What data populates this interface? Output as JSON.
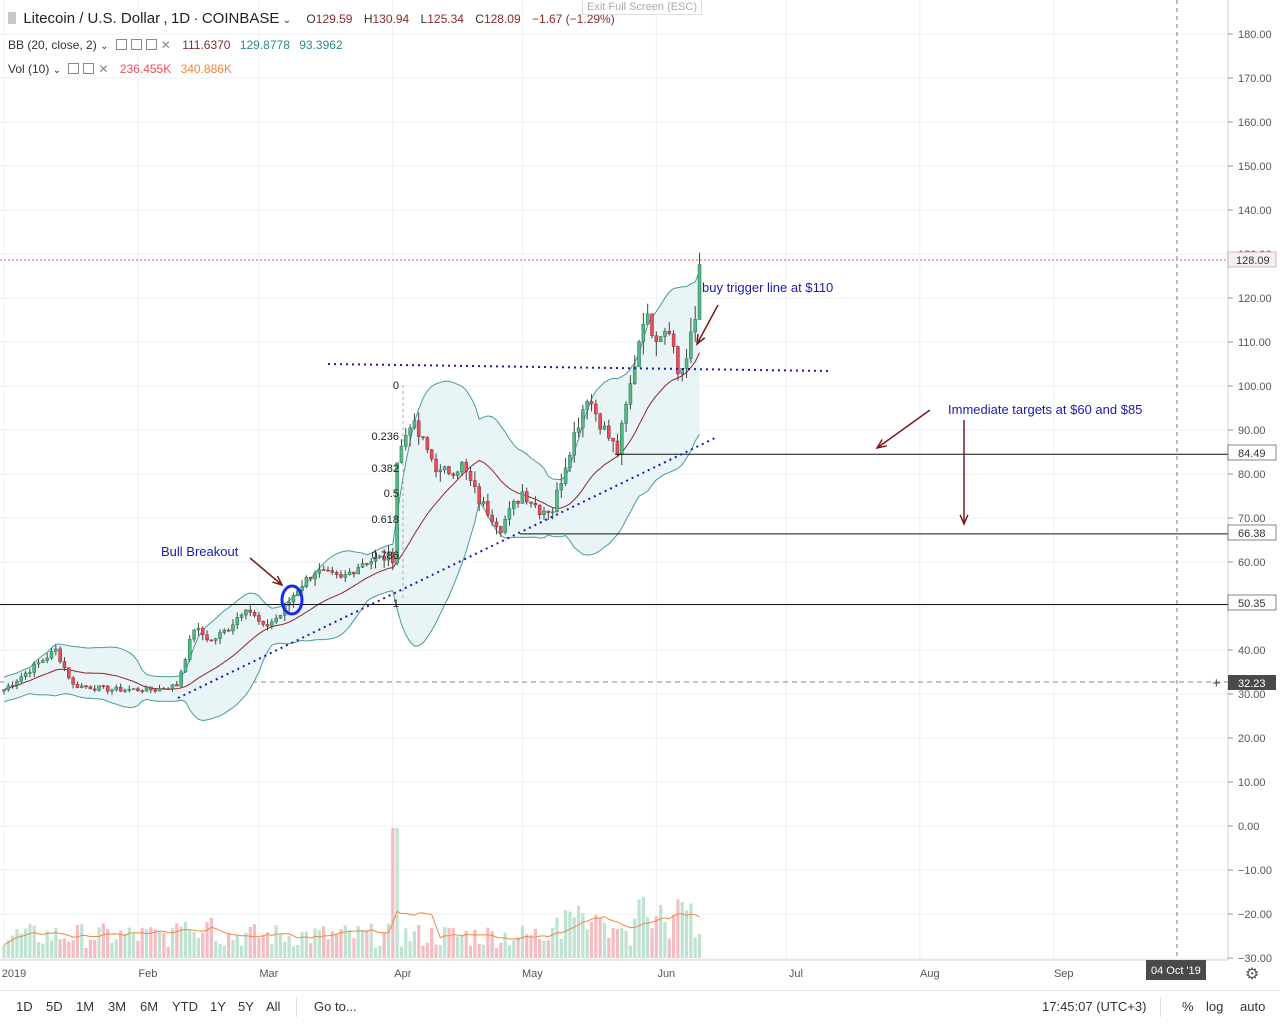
{
  "header": {
    "symbol": "Litecoin / U.S. Dollar",
    "interval": "1D",
    "exchange": "COINBASE",
    "ohlc": {
      "o_label": "O",
      "o": "129.59",
      "h_label": "H",
      "h": "130.94",
      "l_label": "L",
      "l": "125.34",
      "c_label": "C",
      "c": "128.09"
    },
    "change": "−1.67 (−1.29%)",
    "exit_fullscreen": "Exit Full Screen (ESC)"
  },
  "indicators": {
    "bb": {
      "label": "BB (20, close, 2)",
      "v1": "111.6370",
      "v2": "129.8778",
      "v3": "93.3962"
    },
    "vol": {
      "label": "Vol (10)",
      "v1": "236.455K",
      "v2": "340.886K"
    }
  },
  "annotations": {
    "bull_breakout": "Bull Breakout",
    "buy_trigger": "buy trigger line at $110",
    "targets": "Immediate targets at $60 and $85",
    "fib_levels": [
      "0",
      "0.236",
      "0.382",
      "0.5",
      "0.618",
      "0.786",
      "1"
    ]
  },
  "price_labels": {
    "current": "128.09",
    "level_84": "84.49",
    "level_66": "66.38",
    "level_50": "50.35",
    "crosshair": "32.23"
  },
  "crosshair_date": "04 Oct '19",
  "toolbar": {
    "ranges": [
      "1D",
      "5D",
      "1M",
      "3M",
      "6M",
      "YTD",
      "1Y",
      "5Y",
      "All"
    ],
    "goto": "Go to...",
    "time": "17:45:07 (UTC+3)",
    "percent": "%",
    "log": "log",
    "auto": "auto"
  },
  "colors": {
    "up": "#53b987",
    "down": "#eb4d5c",
    "bb_band": "#4a9a9a",
    "bb_fill": "#e8f4f6",
    "bb_basis": "#8b2a2a",
    "annotation_blue": "#1a1aaf",
    "arrow": "#7a1a1a"
  },
  "chart_data": {
    "type": "candlestick",
    "title": "Litecoin / U.S. Dollar, 1D, COINBASE",
    "y_axis": {
      "ticks": [
        -30,
        -20,
        -10,
        0,
        10,
        20,
        30,
        40,
        50,
        60,
        70,
        80,
        90,
        100,
        110,
        120,
        130,
        140,
        150,
        160,
        170,
        180
      ],
      "tick_labels": [
        "−30.00",
        "−20.00",
        "−10.00",
        "0.00",
        "10.00",
        "20.00",
        "30.00",
        "40.00",
        "50.00",
        "60.00",
        "70.00",
        "80.00",
        "90.00",
        "100.00",
        "110.00",
        "120.00",
        "130.00",
        "140.00",
        "150.00",
        "160.00",
        "170.00",
        "180.00"
      ]
    },
    "x_axis": {
      "labels": [
        "2019",
        "Feb",
        "Mar",
        "Apr",
        "May",
        "Jun",
        "Jul",
        "Aug",
        "Sep"
      ]
    },
    "price_anchors": [
      {
        "day": 0,
        "price": 31
      },
      {
        "day": 8,
        "price": 37
      },
      {
        "day": 12,
        "price": 40
      },
      {
        "day": 16,
        "price": 32
      },
      {
        "day": 25,
        "price": 31
      },
      {
        "day": 35,
        "price": 31
      },
      {
        "day": 40,
        "price": 32
      },
      {
        "day": 44,
        "price": 45
      },
      {
        "day": 48,
        "price": 42
      },
      {
        "day": 52,
        "price": 45
      },
      {
        "day": 56,
        "price": 50
      },
      {
        "day": 60,
        "price": 45
      },
      {
        "day": 64,
        "price": 48
      },
      {
        "day": 68,
        "price": 54
      },
      {
        "day": 72,
        "price": 58
      },
      {
        "day": 78,
        "price": 56
      },
      {
        "day": 83,
        "price": 60
      },
      {
        "day": 88,
        "price": 61
      },
      {
        "day": 90,
        "price": 61
      },
      {
        "day": 91,
        "price": 83
      },
      {
        "day": 94,
        "price": 92
      },
      {
        "day": 97,
        "price": 87
      },
      {
        "day": 101,
        "price": 80
      },
      {
        "day": 106,
        "price": 82
      },
      {
        "day": 110,
        "price": 74
      },
      {
        "day": 115,
        "price": 68
      },
      {
        "day": 120,
        "price": 76
      },
      {
        "day": 124,
        "price": 72
      },
      {
        "day": 127,
        "price": 72
      },
      {
        "day": 131,
        "price": 86
      },
      {
        "day": 135,
        "price": 98
      },
      {
        "day": 139,
        "price": 90
      },
      {
        "day": 142,
        "price": 85
      },
      {
        "day": 145,
        "price": 100
      },
      {
        "day": 148,
        "price": 116
      },
      {
        "day": 151,
        "price": 112
      },
      {
        "day": 154,
        "price": 114
      },
      {
        "day": 156,
        "price": 103
      },
      {
        "day": 158,
        "price": 106
      },
      {
        "day": 160,
        "price": 115
      },
      {
        "day": 161,
        "price": 128
      }
    ],
    "levels": [
      {
        "label": "84.49",
        "value": 84.49
      },
      {
        "label": "66.38",
        "value": 66.38
      },
      {
        "label": "50.35",
        "value": 50.35
      }
    ],
    "bollinger": {
      "length": 20,
      "mult": 2,
      "upper": 129.8778,
      "basis": 111.637,
      "lower": 93.3962
    },
    "volume": {
      "length": 10,
      "last": "236.455K",
      "ma": "340.886K"
    }
  }
}
